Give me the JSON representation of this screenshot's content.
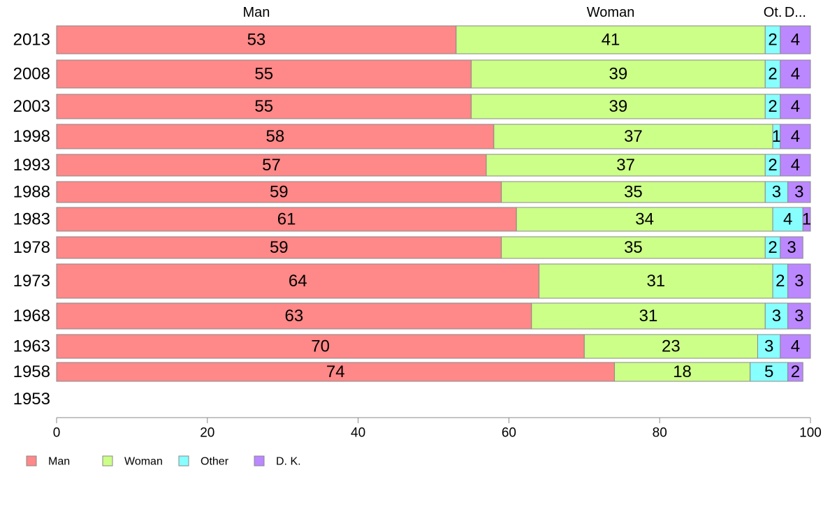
{
  "chart_data": {
    "type": "bar",
    "orientation": "horizontal",
    "stacked": true,
    "categories": [
      "2013",
      "2008",
      "2003",
      "1998",
      "1993",
      "1988",
      "1983",
      "1978",
      "1973",
      "1968",
      "1963",
      "1958",
      "1953"
    ],
    "series": [
      {
        "name": "Man",
        "color": "#ff8888",
        "values": [
          53,
          55,
          55,
          58,
          57,
          59,
          61,
          59,
          64,
          63,
          70,
          74,
          null
        ]
      },
      {
        "name": "Woman",
        "color": "#ccff88",
        "values": [
          41,
          39,
          39,
          37,
          37,
          35,
          34,
          35,
          31,
          31,
          23,
          18,
          null
        ]
      },
      {
        "name": "Other",
        "color": "#88ffff",
        "values": [
          2,
          2,
          2,
          1,
          2,
          3,
          4,
          2,
          2,
          3,
          3,
          5,
          null
        ]
      },
      {
        "name": "D. K.",
        "color": "#bb88ff",
        "values": [
          4,
          4,
          4,
          4,
          4,
          3,
          1,
          3,
          3,
          3,
          4,
          2,
          null
        ]
      }
    ],
    "top_labels": [
      "Man",
      "Woman",
      "Ot.",
      "D..."
    ],
    "xlim": [
      0,
      100
    ],
    "xticks": [
      "0",
      "20",
      "40",
      "60",
      "80",
      "100"
    ],
    "legend_position": "bottom-left",
    "grid": false
  }
}
